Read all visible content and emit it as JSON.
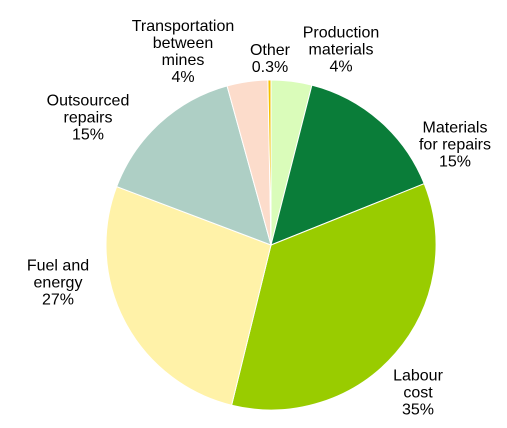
{
  "chart_data": {
    "type": "pie",
    "categories": [
      "Production materials",
      "Materials for repairs",
      "Labour cost",
      "Fuel and energy",
      "Outsourced repairs",
      "Transportation between mines",
      "Other"
    ],
    "values": [
      4,
      15,
      35,
      27,
      15,
      4,
      0.3
    ],
    "value_labels": [
      "4%",
      "15%",
      "35%",
      "27%",
      "15%",
      "4%",
      "0.3%"
    ],
    "colors": [
      "#dafcba",
      "#0a7d39",
      "#99cc00",
      "#fff2a8",
      "#aecfc5",
      "#fcdccb",
      "#f5c000"
    ]
  }
}
